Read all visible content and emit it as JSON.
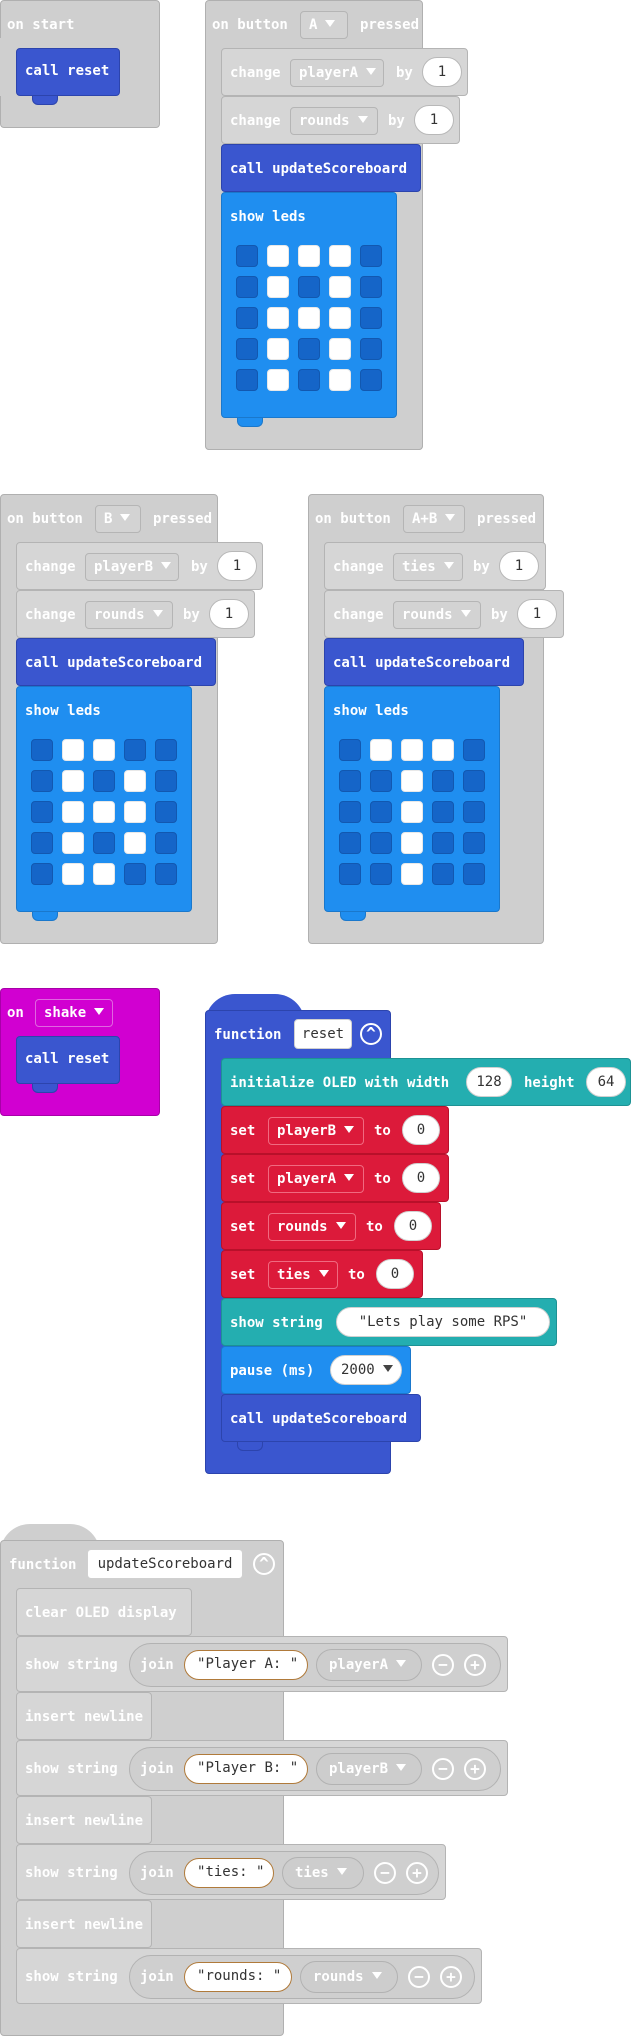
{
  "on_start": {
    "hat": "on start",
    "call": "call reset"
  },
  "button_a": {
    "hat_prefix": "on button",
    "button": "A",
    "hat_suffix": "pressed",
    "change1": {
      "label": "change",
      "var": "playerA",
      "by": "by",
      "value": "1"
    },
    "change2": {
      "label": "change",
      "var": "rounds",
      "by": "by",
      "value": "1"
    },
    "call": "call updateScoreboard",
    "show_leds": "show leds",
    "leds": [
      [
        0,
        1,
        1,
        1,
        0
      ],
      [
        0,
        1,
        0,
        1,
        0
      ],
      [
        0,
        1,
        1,
        1,
        0
      ],
      [
        0,
        1,
        0,
        1,
        0
      ],
      [
        0,
        1,
        0,
        1,
        0
      ]
    ]
  },
  "button_b": {
    "hat_prefix": "on button",
    "button": "B",
    "hat_suffix": "pressed",
    "change1": {
      "label": "change",
      "var": "playerB",
      "by": "by",
      "value": "1"
    },
    "change2": {
      "label": "change",
      "var": "rounds",
      "by": "by",
      "value": "1"
    },
    "call": "call updateScoreboard",
    "show_leds": "show leds",
    "leds": [
      [
        0,
        1,
        1,
        0,
        0
      ],
      [
        0,
        1,
        0,
        1,
        0
      ],
      [
        0,
        1,
        1,
        1,
        0
      ],
      [
        0,
        1,
        0,
        1,
        0
      ],
      [
        0,
        1,
        1,
        0,
        0
      ]
    ]
  },
  "button_ab": {
    "hat_prefix": "on button",
    "button": "A+B",
    "hat_suffix": "pressed",
    "change1": {
      "label": "change",
      "var": "ties",
      "by": "by",
      "value": "1"
    },
    "change2": {
      "label": "change",
      "var": "rounds",
      "by": "by",
      "value": "1"
    },
    "call": "call updateScoreboard",
    "show_leds": "show leds",
    "leds": [
      [
        0,
        1,
        1,
        1,
        0
      ],
      [
        0,
        0,
        1,
        0,
        0
      ],
      [
        0,
        0,
        1,
        0,
        0
      ],
      [
        0,
        0,
        1,
        0,
        0
      ],
      [
        0,
        0,
        1,
        0,
        0
      ]
    ]
  },
  "on_shake": {
    "on": "on",
    "event": "shake",
    "call": "call reset"
  },
  "reset_fn": {
    "function": "function",
    "name": "reset",
    "oled": {
      "label": "initialize OLED with width",
      "width": "128",
      "height_label": "height",
      "height": "64"
    },
    "sets": [
      {
        "set": "set",
        "var": "playerB",
        "to": "to",
        "value": "0"
      },
      {
        "set": "set",
        "var": "playerA",
        "to": "to",
        "value": "0"
      },
      {
        "set": "set",
        "var": "rounds",
        "to": "to",
        "value": "0"
      },
      {
        "set": "set",
        "var": "ties",
        "to": "to",
        "value": "0"
      }
    ],
    "show_string": "show string",
    "string": "\"Lets play some RPS\"",
    "pause": "pause (ms)",
    "pause_value": "2000",
    "call": "call updateScoreboard"
  },
  "update_fn": {
    "function": "function",
    "name": "updateScoreboard",
    "clear": "clear OLED display",
    "rows": [
      {
        "show": "show string",
        "join": "join",
        "str": "Player A: ",
        "var": "playerA"
      },
      {
        "newline": "insert newline"
      },
      {
        "show": "show string",
        "join": "join",
        "str": "Player B: ",
        "var": "playerB"
      },
      {
        "newline": "insert newline"
      },
      {
        "show": "show string",
        "join": "join",
        "str": "ties: ",
        "var": "ties"
      },
      {
        "newline": "insert newline"
      },
      {
        "show": "show string",
        "join": "join",
        "str": "rounds: ",
        "var": "rounds"
      }
    ]
  },
  "colors": {
    "events": "#cfcfcf",
    "functions": "#3a56cf",
    "basic": "#1f8ef0",
    "oled": "#24aeb0",
    "variables": "#dc1a3a",
    "input": "#d100d1"
  }
}
